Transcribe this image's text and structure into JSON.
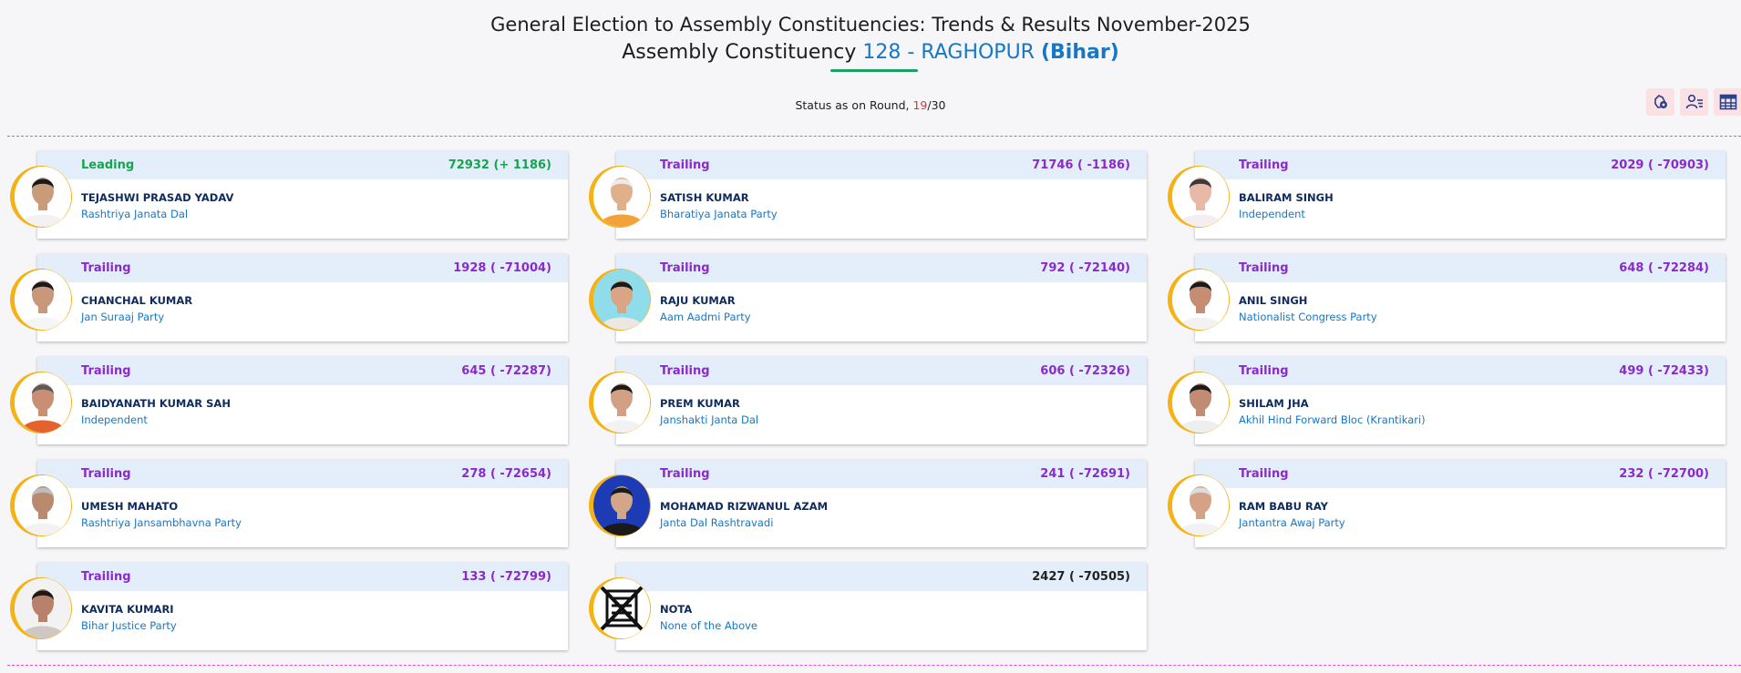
{
  "header": {
    "title": "General Election to Assembly Constituencies: Trends & Results November-2025",
    "subtitle_prefix": "Assembly Constituency",
    "constituency": "128 - RAGHOPUR",
    "state": "(Bihar)"
  },
  "status": {
    "label": "Status as on Round,",
    "current_round": "19",
    "separator": "/",
    "total_rounds": "30"
  },
  "toolbar": [
    {
      "icon": "constituency-map-icon"
    },
    {
      "icon": "candidate-list-icon"
    },
    {
      "icon": "table-view-icon"
    }
  ],
  "candidates": [
    {
      "status": "Leading",
      "status_type": "lead",
      "votes": "72932 (+ 1186)",
      "name": "TEJASHWI PRASAD YADAV",
      "party": "Rashtriya Janata Dal",
      "skin": "#c89b7a",
      "shirt": "#f2f2f2",
      "hair": "#1a1a1a",
      "bg": "#ffffff"
    },
    {
      "status": "Trailing",
      "status_type": "trail",
      "votes": "71746 ( -1186)",
      "name": "SATISH KUMAR",
      "party": "Bharatiya Janata Party",
      "skin": "#e0b08a",
      "shirt": "#f3a13a",
      "hair": "#ebebeb",
      "bg": "#ffffff"
    },
    {
      "status": "Trailing",
      "status_type": "trail",
      "votes": "2029 ( -70903)",
      "name": "BALIRAM SINGH",
      "party": "Independent",
      "skin": "#e8b9a6",
      "shirt": "#f4eef0",
      "hair": "#3a3a3a",
      "bg": "#ffffff"
    },
    {
      "status": "Trailing",
      "status_type": "trail",
      "votes": "1928 ( -71004)",
      "name": "CHANCHAL KUMAR",
      "party": "Jan Suraaj Party",
      "skin": "#c9977a",
      "shirt": "#f5f5f5",
      "hair": "#1a1a1a",
      "bg": "#ffffff"
    },
    {
      "status": "Trailing",
      "status_type": "trail",
      "votes": "792 ( -72140)",
      "name": "RAJU KUMAR",
      "party": "Aam Aadmi Party",
      "skin": "#d9a585",
      "shirt": "#ece7e0",
      "hair": "#1a1a1a",
      "bg": "#8fdcea"
    },
    {
      "status": "Trailing",
      "status_type": "trail",
      "votes": "648 ( -72284)",
      "name": "ANIL SINGH",
      "party": "Nationalist Congress Party",
      "skin": "#c78d72",
      "shirt": "#f2f2f2",
      "hair": "#1a1a1a",
      "bg": "#ffffff"
    },
    {
      "status": "Trailing",
      "status_type": "trail",
      "votes": "645 ( -72287)",
      "name": "BAIDYANATH KUMAR SAH",
      "party": "Independent",
      "skin": "#c98f74",
      "shirt": "#e4622c",
      "hair": "#5a5a5a",
      "bg": "#ffffff"
    },
    {
      "status": "Trailing",
      "status_type": "trail",
      "votes": "606 ( -72326)",
      "name": "PREM KUMAR",
      "party": "Janshakti Janta Dal",
      "skin": "#d2a185",
      "shirt": "#f2f2f2",
      "hair": "#1a1a1a",
      "bg": "#ffffff"
    },
    {
      "status": "Trailing",
      "status_type": "trail",
      "votes": "499 ( -72433)",
      "name": "SHILAM JHA",
      "party": "Akhil Hind Forward Bloc (Krantikari)",
      "skin": "#c28b73",
      "shirt": "#eeeeee",
      "hair": "#1a1a1a",
      "bg": "#ffffff"
    },
    {
      "status": "Trailing",
      "status_type": "trail",
      "votes": "278 ( -72654)",
      "name": "UMESH MAHATO",
      "party": "Rashtriya Jansambhavna Party",
      "skin": "#b98a6e",
      "shirt": "#f2f2f2",
      "hair": "#bdbdbd",
      "bg": "#ffffff"
    },
    {
      "status": "Trailing",
      "status_type": "trail",
      "votes": "241 ( -72691)",
      "name": "MOHAMAD RIZWANUL AZAM",
      "party": "Janta Dal Rashtravadi",
      "skin": "#d3a688",
      "shirt": "#1a1a1a",
      "hair": "#1a1a1a",
      "bg": "#1c3bb4"
    },
    {
      "status": "Trailing",
      "status_type": "trail",
      "votes": "232 ( -72700)",
      "name": "RAM BABU RAY",
      "party": "Jantantra Awaj Party",
      "skin": "#d5a187",
      "shirt": "#f2f2f2",
      "hair": "#dcdcdc",
      "bg": "#ffffff"
    },
    {
      "status": "Trailing",
      "status_type": "trail",
      "votes": "133 ( -72799)",
      "name": "KAVITA KUMARI",
      "party": "Bihar Justice Party",
      "skin": "#b8826a",
      "shirt": "#cfc8c2",
      "hair": "#1a1a1a",
      "bg": "#f2f2f2"
    },
    {
      "status": "",
      "status_type": "plain",
      "votes": "2427 ( -70505)",
      "name": "NOTA",
      "party": "None of the Above",
      "nota": true
    }
  ]
}
